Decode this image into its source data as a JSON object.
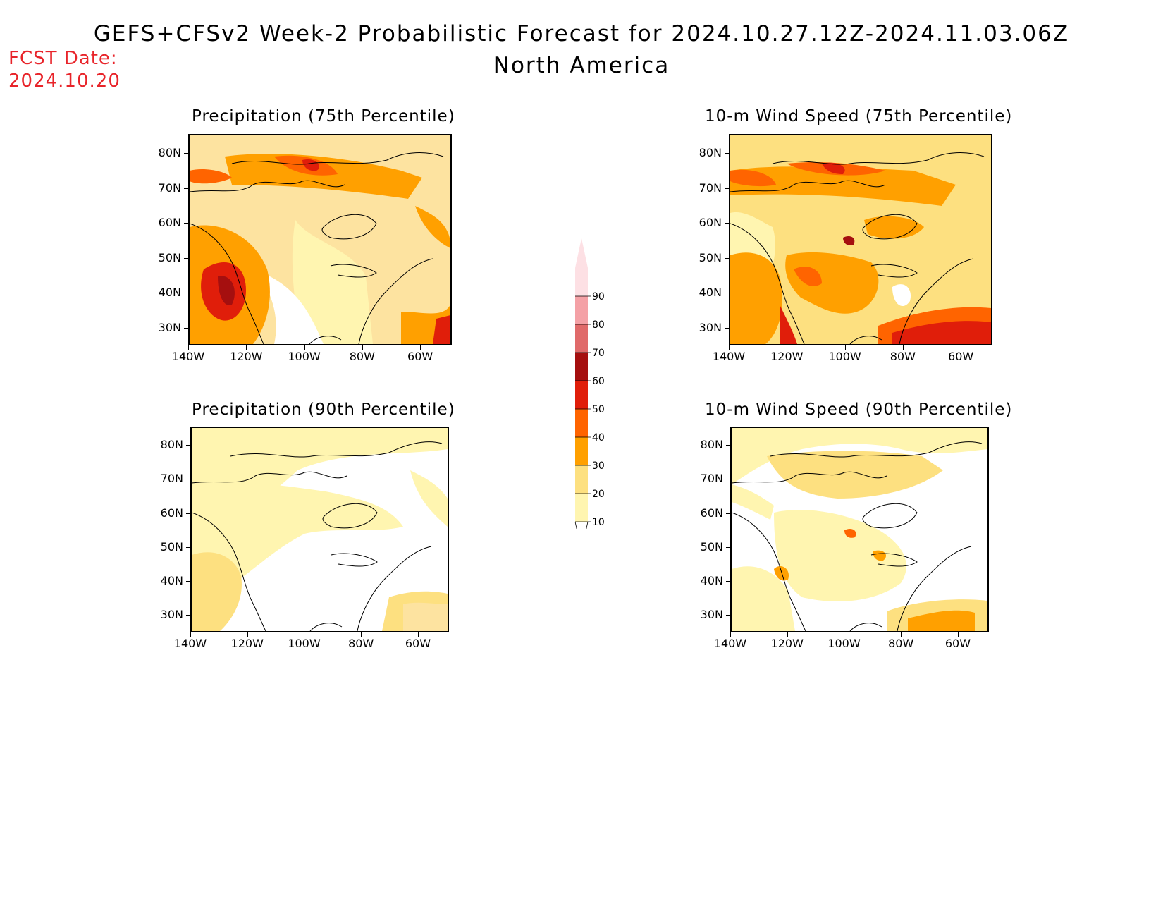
{
  "header": {
    "title": "GEFS+CFSv2 Week-2 Probabilistic Forecast for 2024.10.27.12Z-2024.11.03.06Z",
    "subtitle": "North America",
    "fcst_label": "FCST Date:",
    "fcst_date": "2024.10.20"
  },
  "panels": [
    {
      "title": "Precipitation (75th Percentile)",
      "variable": "precipitation",
      "percentile": "75th"
    },
    {
      "title": "10-m Wind Speed (75th Percentile)",
      "variable": "wind_speed",
      "percentile": "75th"
    },
    {
      "title": "Precipitation (90th Percentile)",
      "variable": "precipitation",
      "percentile": "90th"
    },
    {
      "title": "10-m Wind Speed (90th Percentile)",
      "variable": "wind_speed",
      "percentile": "90th"
    }
  ],
  "axes": {
    "lat_labels": [
      "80N",
      "70N",
      "60N",
      "50N",
      "40N",
      "30N"
    ],
    "lon_labels": [
      "140W",
      "120W",
      "100W",
      "80W",
      "60W"
    ]
  },
  "colorbar": {
    "labels": [
      "90",
      "80",
      "70",
      "60",
      "50",
      "40",
      "30",
      "20",
      "10"
    ],
    "colors": [
      "#fde0e4",
      "#f4a1a6",
      "#e06a6a",
      "#a50f0f",
      "#e01e0a",
      "#ff6400",
      "#ffa000",
      "#fde080",
      "#fff5b0"
    ]
  }
}
